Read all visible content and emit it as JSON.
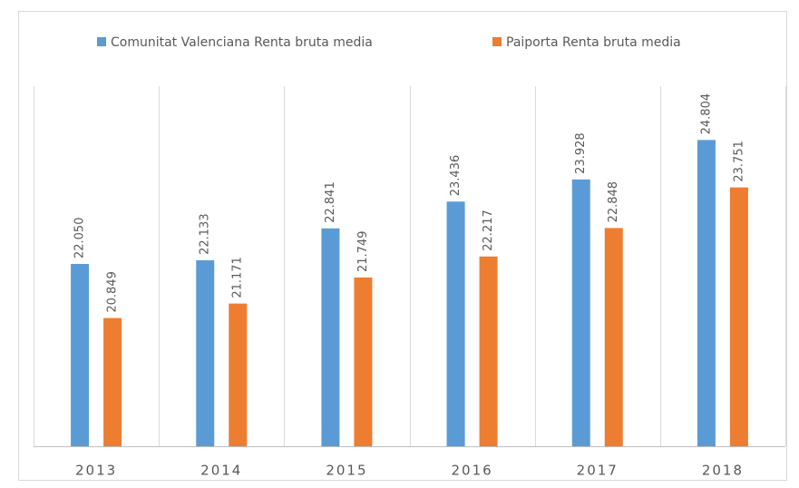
{
  "chart_data": {
    "type": "bar",
    "categories": [
      "2013",
      "2014",
      "2015",
      "2016",
      "2017",
      "2018"
    ],
    "series": [
      {
        "name": "Comunitat Valenciana Renta bruta media",
        "color": "#5b9bd5",
        "values": [
          22050,
          22133,
          22841,
          23436,
          23928,
          24804
        ],
        "value_labels": [
          "22.050",
          "22.133",
          "22.841",
          "23.436",
          "23.928",
          "24.804"
        ]
      },
      {
        "name": "Paiporta Renta bruta media",
        "color": "#ed7d31",
        "values": [
          20849,
          21171,
          21749,
          22217,
          22848,
          23751
        ],
        "value_labels": [
          "20.849",
          "21.171",
          "21.749",
          "22.217",
          "22.848",
          "23.751"
        ]
      }
    ],
    "ylim": [
      18000,
      26000
    ],
    "grid": true,
    "legend": "top"
  }
}
